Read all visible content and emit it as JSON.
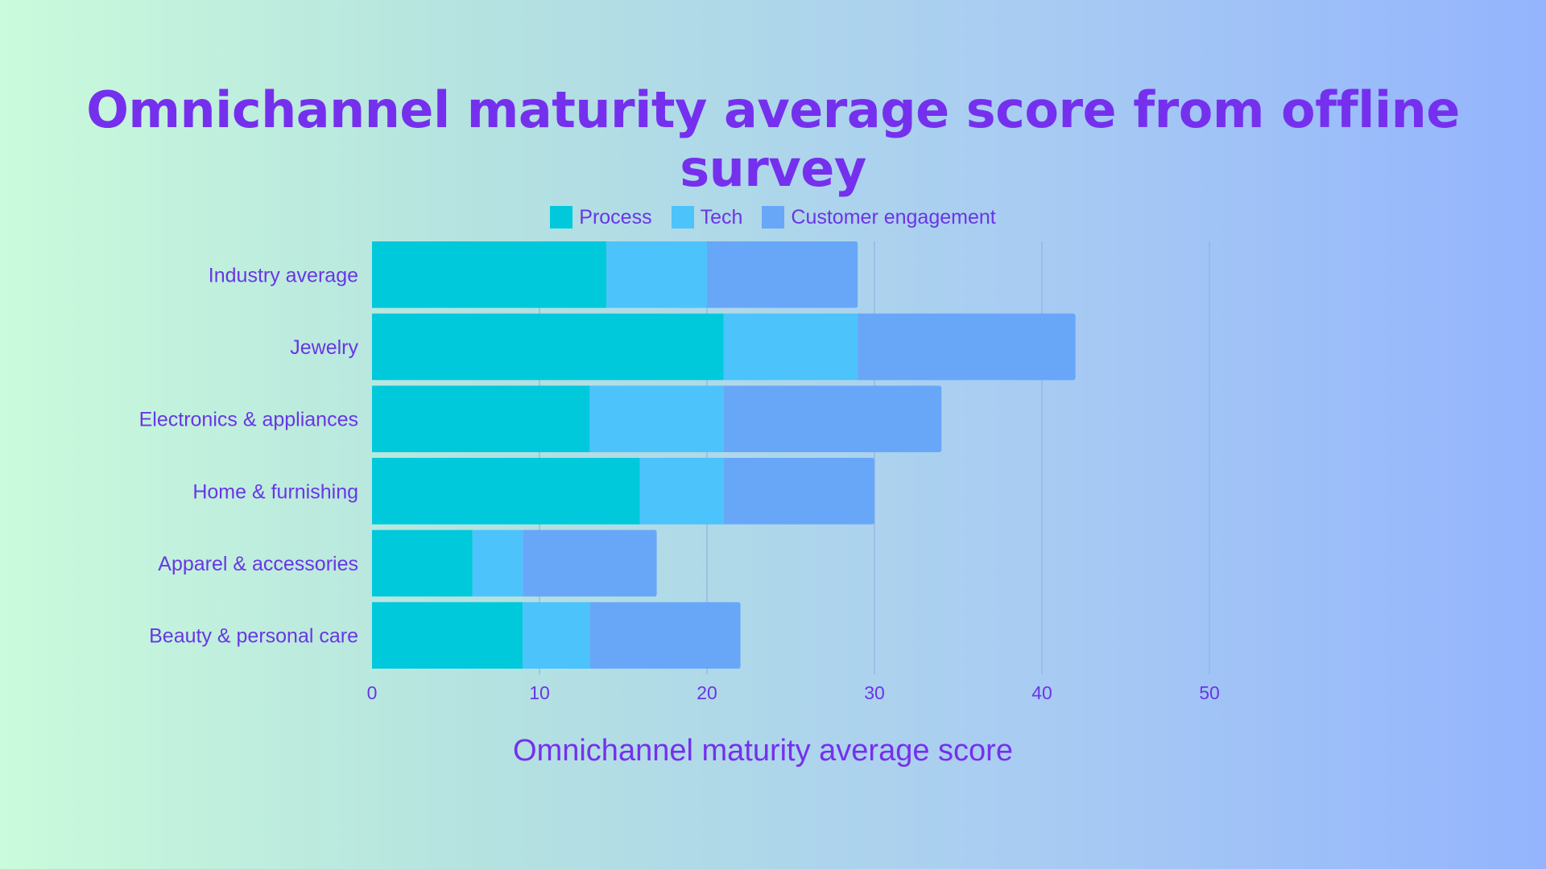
{
  "chart_data": {
    "type": "bar",
    "orientation": "horizontal",
    "stacked": true,
    "title": "Omnichannel maturity average score from offline survey",
    "xlabel": "Omnichannel maturity average score",
    "ylabel": "",
    "categories": [
      "Industry average",
      "Jewelry",
      "Electronics & appliances",
      "Home & furnishing",
      "Apparel & accessories",
      "Beauty & personal care"
    ],
    "series": [
      {
        "name": "Process",
        "color": "#00c9dc",
        "values": [
          14,
          21,
          13,
          16,
          6,
          9
        ]
      },
      {
        "name": "Tech",
        "color": "#4cc3fb",
        "values": [
          6,
          8,
          8,
          5,
          3,
          4
        ]
      },
      {
        "name": "Customer engagement",
        "color": "#68a7f8",
        "values": [
          9,
          13,
          13,
          9,
          8,
          9
        ]
      }
    ],
    "xlim": [
      0,
      50
    ],
    "xticks": [
      0,
      10,
      20,
      30,
      40,
      50
    ],
    "grid": true,
    "legend": "top-center"
  }
}
